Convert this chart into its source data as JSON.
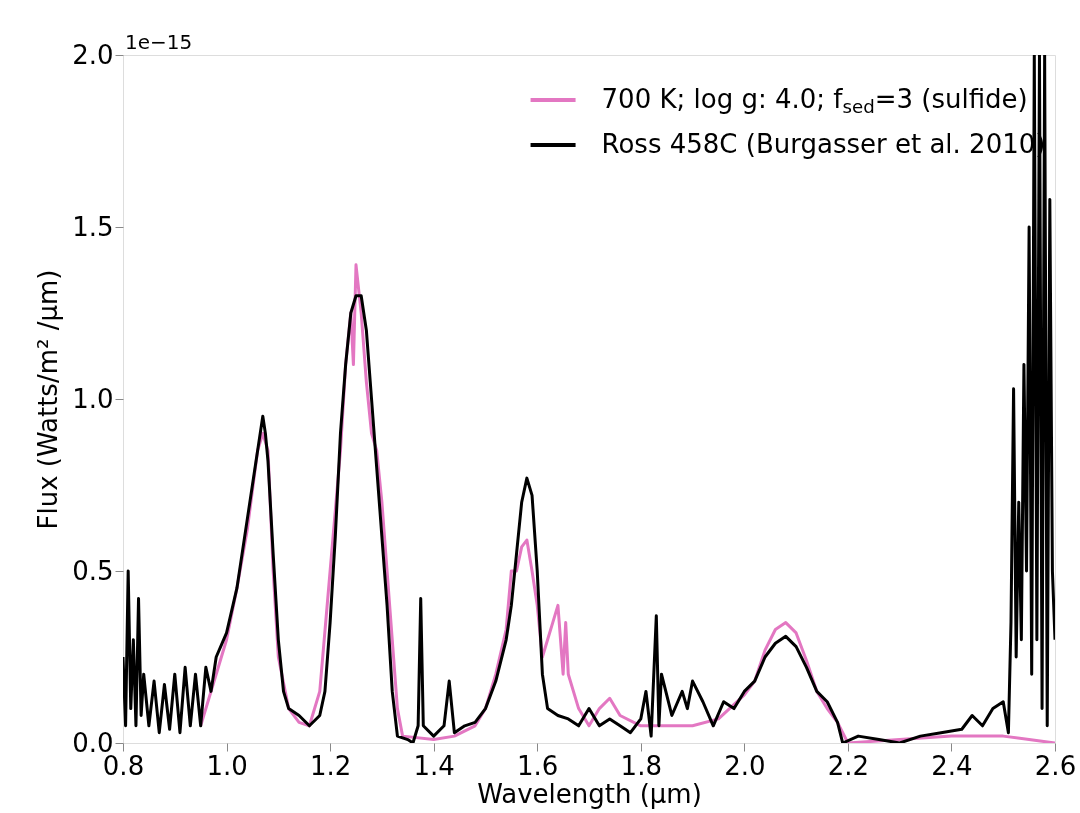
{
  "chart_data": {
    "type": "line",
    "xlabel": "Wavelength (μm)",
    "ylabel": "Flux (Watts/m² /μm)",
    "annotations": [
      "1e−15"
    ],
    "xlim": [
      0.8,
      2.6
    ],
    "xticks": [
      {
        "value": 0.8,
        "label": "0.8"
      },
      {
        "value": 1.0,
        "label": "1.0"
      },
      {
        "value": 1.2,
        "label": "1.2"
      },
      {
        "value": 1.4,
        "label": "1.4"
      },
      {
        "value": 1.6,
        "label": "1.6"
      },
      {
        "value": 1.8,
        "label": "1.8"
      },
      {
        "value": 2.0,
        "label": "2.0"
      },
      {
        "value": 2.2,
        "label": "2.2"
      },
      {
        "value": 2.4,
        "label": "2.4"
      },
      {
        "value": 2.6,
        "label": "2.6"
      }
    ],
    "ylim": [
      0,
      2.0
    ],
    "yticks": [
      {
        "value": 0,
        "label": "0.0"
      },
      0.5,
      {
        "value": 1.0,
        "label": "1.0"
      },
      1.5,
      {
        "value": 2.0,
        "label": "2.0"
      }
    ],
    "grid": false,
    "legend": "top right",
    "line_style": "solid",
    "marker": "none",
    "series": [
      {
        "name": "700 K; log g: 4.0; f$_{sed}$=3 (sulfide)",
        "color": "#e377c2",
        "x": [
          0.95,
          0.98,
          1.0,
          1.02,
          1.04,
          1.06,
          1.07,
          1.08,
          1.09,
          1.1,
          1.12,
          1.14,
          1.16,
          1.18,
          1.2,
          1.22,
          1.23,
          1.24,
          1.245,
          1.25,
          1.26,
          1.27,
          1.28,
          1.29,
          1.3,
          1.31,
          1.32,
          1.33,
          1.34,
          1.4,
          1.44,
          1.48,
          1.5,
          1.52,
          1.54,
          1.55,
          1.56,
          1.57,
          1.58,
          1.59,
          1.6,
          1.61,
          1.62,
          1.63,
          1.64,
          1.65,
          1.655,
          1.66,
          1.68,
          1.7,
          1.72,
          1.74,
          1.76,
          1.8,
          1.85,
          1.9,
          1.95,
          2.0,
          2.02,
          2.04,
          2.06,
          2.08,
          2.1,
          2.12,
          2.14,
          2.16,
          2.18,
          2.2,
          2.3,
          2.4,
          2.5,
          2.55,
          2.6
        ],
        "values": [
          0.05,
          0.2,
          0.3,
          0.45,
          0.62,
          0.85,
          0.9,
          0.85,
          0.5,
          0.25,
          0.1,
          0.06,
          0.05,
          0.15,
          0.5,
          0.85,
          1.1,
          1.25,
          1.1,
          1.39,
          1.25,
          1.05,
          0.9,
          0.85,
          0.7,
          0.5,
          0.3,
          0.1,
          0.02,
          0.01,
          0.02,
          0.05,
          0.1,
          0.2,
          0.33,
          0.5,
          0.5,
          0.57,
          0.59,
          0.5,
          0.4,
          0.25,
          0.3,
          0.35,
          0.4,
          0.2,
          0.35,
          0.2,
          0.1,
          0.05,
          0.1,
          0.13,
          0.08,
          0.05,
          0.05,
          0.05,
          0.07,
          0.14,
          0.18,
          0.27,
          0.33,
          0.35,
          0.32,
          0.24,
          0.15,
          0.1,
          0.06,
          0.0,
          0.01,
          0.02,
          0.02,
          0.01,
          0.0
        ]
      },
      {
        "name": "Ross 458C (Burgasser et al. 2010)",
        "color": "#000000",
        "x": [
          0.8,
          0.805,
          0.81,
          0.815,
          0.82,
          0.825,
          0.83,
          0.835,
          0.84,
          0.85,
          0.86,
          0.87,
          0.88,
          0.89,
          0.9,
          0.91,
          0.92,
          0.93,
          0.94,
          0.95,
          0.96,
          0.97,
          0.98,
          1.0,
          1.02,
          1.04,
          1.05,
          1.06,
          1.07,
          1.075,
          1.08,
          1.09,
          1.1,
          1.11,
          1.12,
          1.14,
          1.16,
          1.18,
          1.19,
          1.2,
          1.21,
          1.22,
          1.23,
          1.24,
          1.25,
          1.26,
          1.27,
          1.28,
          1.29,
          1.3,
          1.31,
          1.32,
          1.33,
          1.35,
          1.36,
          1.37,
          1.375,
          1.38,
          1.4,
          1.42,
          1.43,
          1.44,
          1.46,
          1.48,
          1.5,
          1.52,
          1.54,
          1.55,
          1.56,
          1.57,
          1.58,
          1.59,
          1.6,
          1.61,
          1.62,
          1.64,
          1.66,
          1.68,
          1.7,
          1.72,
          1.74,
          1.76,
          1.78,
          1.8,
          1.81,
          1.82,
          1.83,
          1.835,
          1.84,
          1.86,
          1.88,
          1.89,
          1.9,
          1.92,
          1.94,
          1.96,
          1.98,
          2.0,
          2.02,
          2.04,
          2.06,
          2.08,
          2.1,
          2.12,
          2.14,
          2.16,
          2.18,
          2.19,
          2.22,
          2.26,
          2.3,
          2.34,
          2.38,
          2.42,
          2.44,
          2.46,
          2.48,
          2.5,
          2.51,
          2.515,
          2.52,
          2.525,
          2.53,
          2.535,
          2.54,
          2.545,
          2.55,
          2.555,
          2.56,
          2.565,
          2.57,
          2.575,
          2.58,
          2.585,
          2.59,
          2.595,
          2.6
        ],
        "values": [
          0.25,
          0.05,
          0.5,
          0.1,
          0.3,
          0.05,
          0.42,
          0.08,
          0.2,
          0.05,
          0.18,
          0.03,
          0.17,
          0.04,
          0.2,
          0.03,
          0.22,
          0.05,
          0.2,
          0.05,
          0.22,
          0.15,
          0.25,
          0.32,
          0.45,
          0.65,
          0.75,
          0.85,
          0.95,
          0.9,
          0.82,
          0.55,
          0.3,
          0.15,
          0.1,
          0.08,
          0.05,
          0.08,
          0.15,
          0.35,
          0.6,
          0.9,
          1.1,
          1.25,
          1.3,
          1.3,
          1.2,
          1.0,
          0.8,
          0.6,
          0.4,
          0.15,
          0.02,
          0.01,
          0.0,
          0.05,
          0.42,
          0.05,
          0.02,
          0.05,
          0.18,
          0.03,
          0.05,
          0.06,
          0.1,
          0.18,
          0.3,
          0.4,
          0.55,
          0.7,
          0.77,
          0.72,
          0.5,
          0.2,
          0.1,
          0.08,
          0.07,
          0.05,
          0.1,
          0.05,
          0.07,
          0.05,
          0.03,
          0.07,
          0.15,
          0.02,
          0.37,
          0.05,
          0.2,
          0.08,
          0.15,
          0.1,
          0.18,
          0.12,
          0.05,
          0.12,
          0.1,
          0.15,
          0.18,
          0.25,
          0.29,
          0.31,
          0.28,
          0.22,
          0.15,
          0.12,
          0.06,
          0.0,
          0.02,
          0.01,
          0.0,
          0.02,
          0.03,
          0.04,
          0.08,
          0.05,
          0.1,
          0.12,
          0.03,
          0.35,
          1.03,
          0.25,
          0.7,
          0.3,
          1.1,
          0.5,
          1.5,
          0.2,
          2.0,
          0.3,
          2.0,
          0.1,
          2.0,
          0.05,
          1.58,
          0.5,
          0.3
        ]
      }
    ]
  }
}
